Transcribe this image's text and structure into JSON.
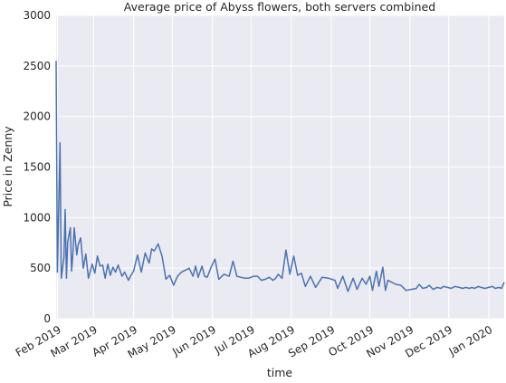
{
  "chart_data": {
    "type": "line",
    "title": "Average price of Abyss flowers, both servers combined",
    "xlabel": "time",
    "ylabel": "Price in Zenny",
    "ylim": [
      0,
      3000
    ],
    "yticks": [
      0,
      500,
      1000,
      1500,
      2000,
      2500,
      3000
    ],
    "xlim": [
      "2019-01-31",
      "2020-01-13"
    ],
    "xticks": [
      {
        "date": "2019-02-01",
        "label": "Feb 2019"
      },
      {
        "date": "2019-03-01",
        "label": "Mar 2019"
      },
      {
        "date": "2019-04-01",
        "label": "Apr 2019"
      },
      {
        "date": "2019-05-01",
        "label": "May 2019"
      },
      {
        "date": "2019-06-01",
        "label": "Jun 2019"
      },
      {
        "date": "2019-07-01",
        "label": "Jul 2019"
      },
      {
        "date": "2019-08-01",
        "label": "Aug 2019"
      },
      {
        "date": "2019-09-01",
        "label": "Sep 2019"
      },
      {
        "date": "2019-10-01",
        "label": "Oct 2019"
      },
      {
        "date": "2019-11-01",
        "label": "Nov 2019"
      },
      {
        "date": "2019-12-01",
        "label": "Dec 2019"
      },
      {
        "date": "2020-01-01",
        "label": "Jan 2020"
      }
    ],
    "grid": true,
    "background": "#eaeaf2",
    "grid_color": "#ffffff",
    "line_color": "#4c72b0",
    "x": [
      "2019-01-31",
      "2019-02-01",
      "2019-02-03",
      "2019-02-04",
      "2019-02-06",
      "2019-02-07",
      "2019-02-08",
      "2019-02-09",
      "2019-02-11",
      "2019-02-12",
      "2019-02-13",
      "2019-02-14",
      "2019-02-16",
      "2019-02-17",
      "2019-02-19",
      "2019-02-21",
      "2019-02-23",
      "2019-02-25",
      "2019-02-28",
      "2019-03-02",
      "2019-03-04",
      "2019-03-06",
      "2019-03-08",
      "2019-03-10",
      "2019-03-12",
      "2019-03-14",
      "2019-03-16",
      "2019-03-18",
      "2019-03-20",
      "2019-03-23",
      "2019-03-25",
      "2019-03-28",
      "2019-03-30",
      "2019-04-01",
      "2019-04-04",
      "2019-04-07",
      "2019-04-10",
      "2019-04-13",
      "2019-04-15",
      "2019-04-17",
      "2019-04-20",
      "2019-04-23",
      "2019-04-26",
      "2019-04-29",
      "2019-05-02",
      "2019-05-05",
      "2019-05-08",
      "2019-05-11",
      "2019-05-14",
      "2019-05-17",
      "2019-05-19",
      "2019-05-21",
      "2019-05-24",
      "2019-05-26",
      "2019-05-28",
      "2019-05-31",
      "2019-06-03",
      "2019-06-06",
      "2019-06-10",
      "2019-06-14",
      "2019-06-17",
      "2019-06-20",
      "2019-06-23",
      "2019-06-26",
      "2019-06-29",
      "2019-07-03",
      "2019-07-06",
      "2019-07-09",
      "2019-07-12",
      "2019-07-15",
      "2019-07-18",
      "2019-07-20",
      "2019-07-22",
      "2019-07-25",
      "2019-07-28",
      "2019-07-31",
      "2019-08-03",
      "2019-08-06",
      "2019-08-09",
      "2019-08-12",
      "2019-08-16",
      "2019-08-20",
      "2019-08-25",
      "2019-08-30",
      "2019-09-04",
      "2019-09-06",
      "2019-09-10",
      "2019-09-14",
      "2019-09-18",
      "2019-09-21",
      "2019-09-25",
      "2019-09-28",
      "2019-10-01",
      "2019-10-03",
      "2019-10-06",
      "2019-10-08",
      "2019-10-11",
      "2019-10-13",
      "2019-10-15",
      "2019-10-18",
      "2019-10-21",
      "2019-10-25",
      "2019-10-29",
      "2019-11-02",
      "2019-11-06",
      "2019-11-08",
      "2019-11-11",
      "2019-11-14",
      "2019-11-16",
      "2019-11-19",
      "2019-11-22",
      "2019-11-25",
      "2019-11-27",
      "2019-11-30",
      "2019-12-03",
      "2019-12-06",
      "2019-12-09",
      "2019-12-12",
      "2019-12-14",
      "2019-12-17",
      "2019-12-19",
      "2019-12-21",
      "2019-12-24",
      "2019-12-26",
      "2019-12-29",
      "2020-01-01",
      "2020-01-04",
      "2020-01-06",
      "2020-01-09",
      "2020-01-11",
      "2020-01-13"
    ],
    "series": [
      {
        "values": [
          2550,
          460,
          1740,
          400,
          600,
          1080,
          400,
          760,
          900,
          470,
          640,
          900,
          630,
          730,
          800,
          500,
          640,
          400,
          540,
          450,
          620,
          520,
          530,
          400,
          540,
          430,
          510,
          460,
          530,
          420,
          460,
          380,
          430,
          470,
          630,
          460,
          650,
          550,
          690,
          670,
          740,
          620,
          390,
          430,
          330,
          420,
          460,
          480,
          500,
          420,
          520,
          410,
          520,
          420,
          410,
          510,
          590,
          390,
          440,
          420,
          570,
          420,
          410,
          400,
          400,
          420,
          420,
          380,
          390,
          410,
          380,
          400,
          440,
          400,
          680,
          440,
          620,
          430,
          450,
          320,
          420,
          310,
          410,
          400,
          380,
          300,
          420,
          270,
          400,
          290,
          400,
          340,
          420,
          280,
          470,
          320,
          510,
          280,
          380,
          360,
          340,
          330,
          280,
          290,
          300,
          340,
          300,
          310,
          330,
          290,
          310,
          300,
          320,
          310,
          300,
          320,
          310,
          300,
          310,
          300,
          310,
          300,
          320,
          310,
          300,
          310,
          320,
          300,
          310,
          300,
          360
        ]
      }
    ]
  }
}
